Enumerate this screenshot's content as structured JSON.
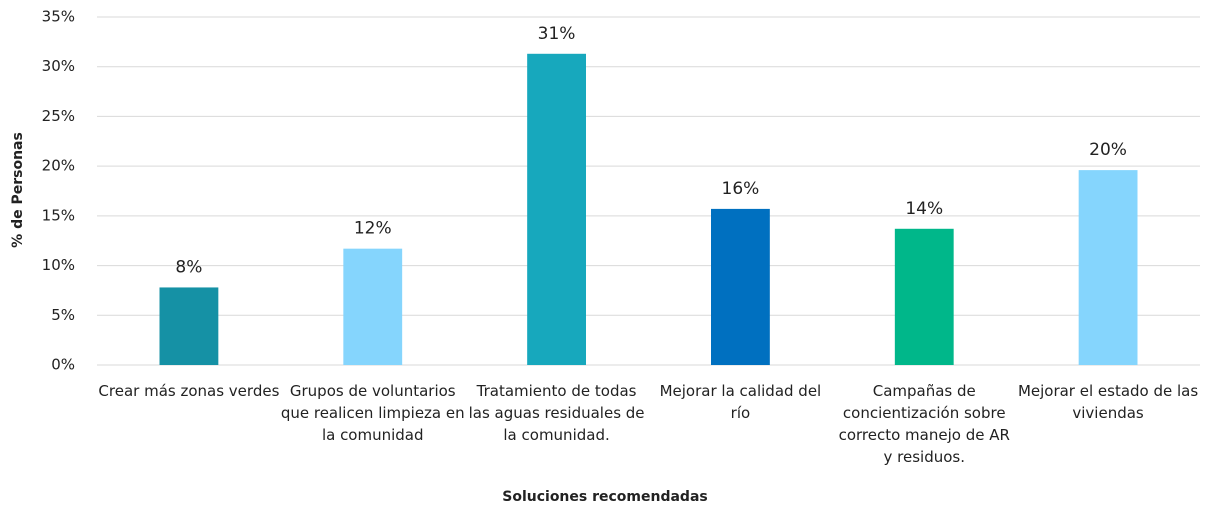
{
  "chart_data": {
    "type": "bar",
    "x_label": "Soluciones recomendadas",
    "y_label": "% de Personas",
    "categories": [
      "Crear más zonas verdes",
      "Grupos de voluntarios que realicen limpieza en la comunidad",
      "Tratamiento de todas las aguas residuales de la comunidad.",
      "Mejorar la calidad del río",
      "Campañas de concientización sobre correcto manejo de AR y residuos.",
      "Mejorar el estado de las viviendas"
    ],
    "values": [
      7.8,
      11.7,
      31.3,
      15.7,
      13.7,
      19.6
    ],
    "value_labels": [
      "8%",
      "12%",
      "31%",
      "16%",
      "14%",
      "20%"
    ],
    "colors": [
      "#1591a5",
      "#85d5fd",
      "#17a8bd",
      "#0070c0",
      "#00b78a",
      "#85d5fd"
    ],
    "ylim": [
      0,
      35
    ],
    "yticks": [
      {
        "value": 0,
        "label": "0%"
      },
      {
        "value": 5,
        "label": "5%"
      },
      {
        "value": 10,
        "label": "10%"
      },
      {
        "value": 15,
        "label": "15%"
      },
      {
        "value": 20,
        "label": "20%"
      },
      {
        "value": 25,
        "label": "25%"
      },
      {
        "value": 30,
        "label": "30%"
      },
      {
        "value": 35,
        "label": "35%"
      }
    ],
    "grid": true
  }
}
